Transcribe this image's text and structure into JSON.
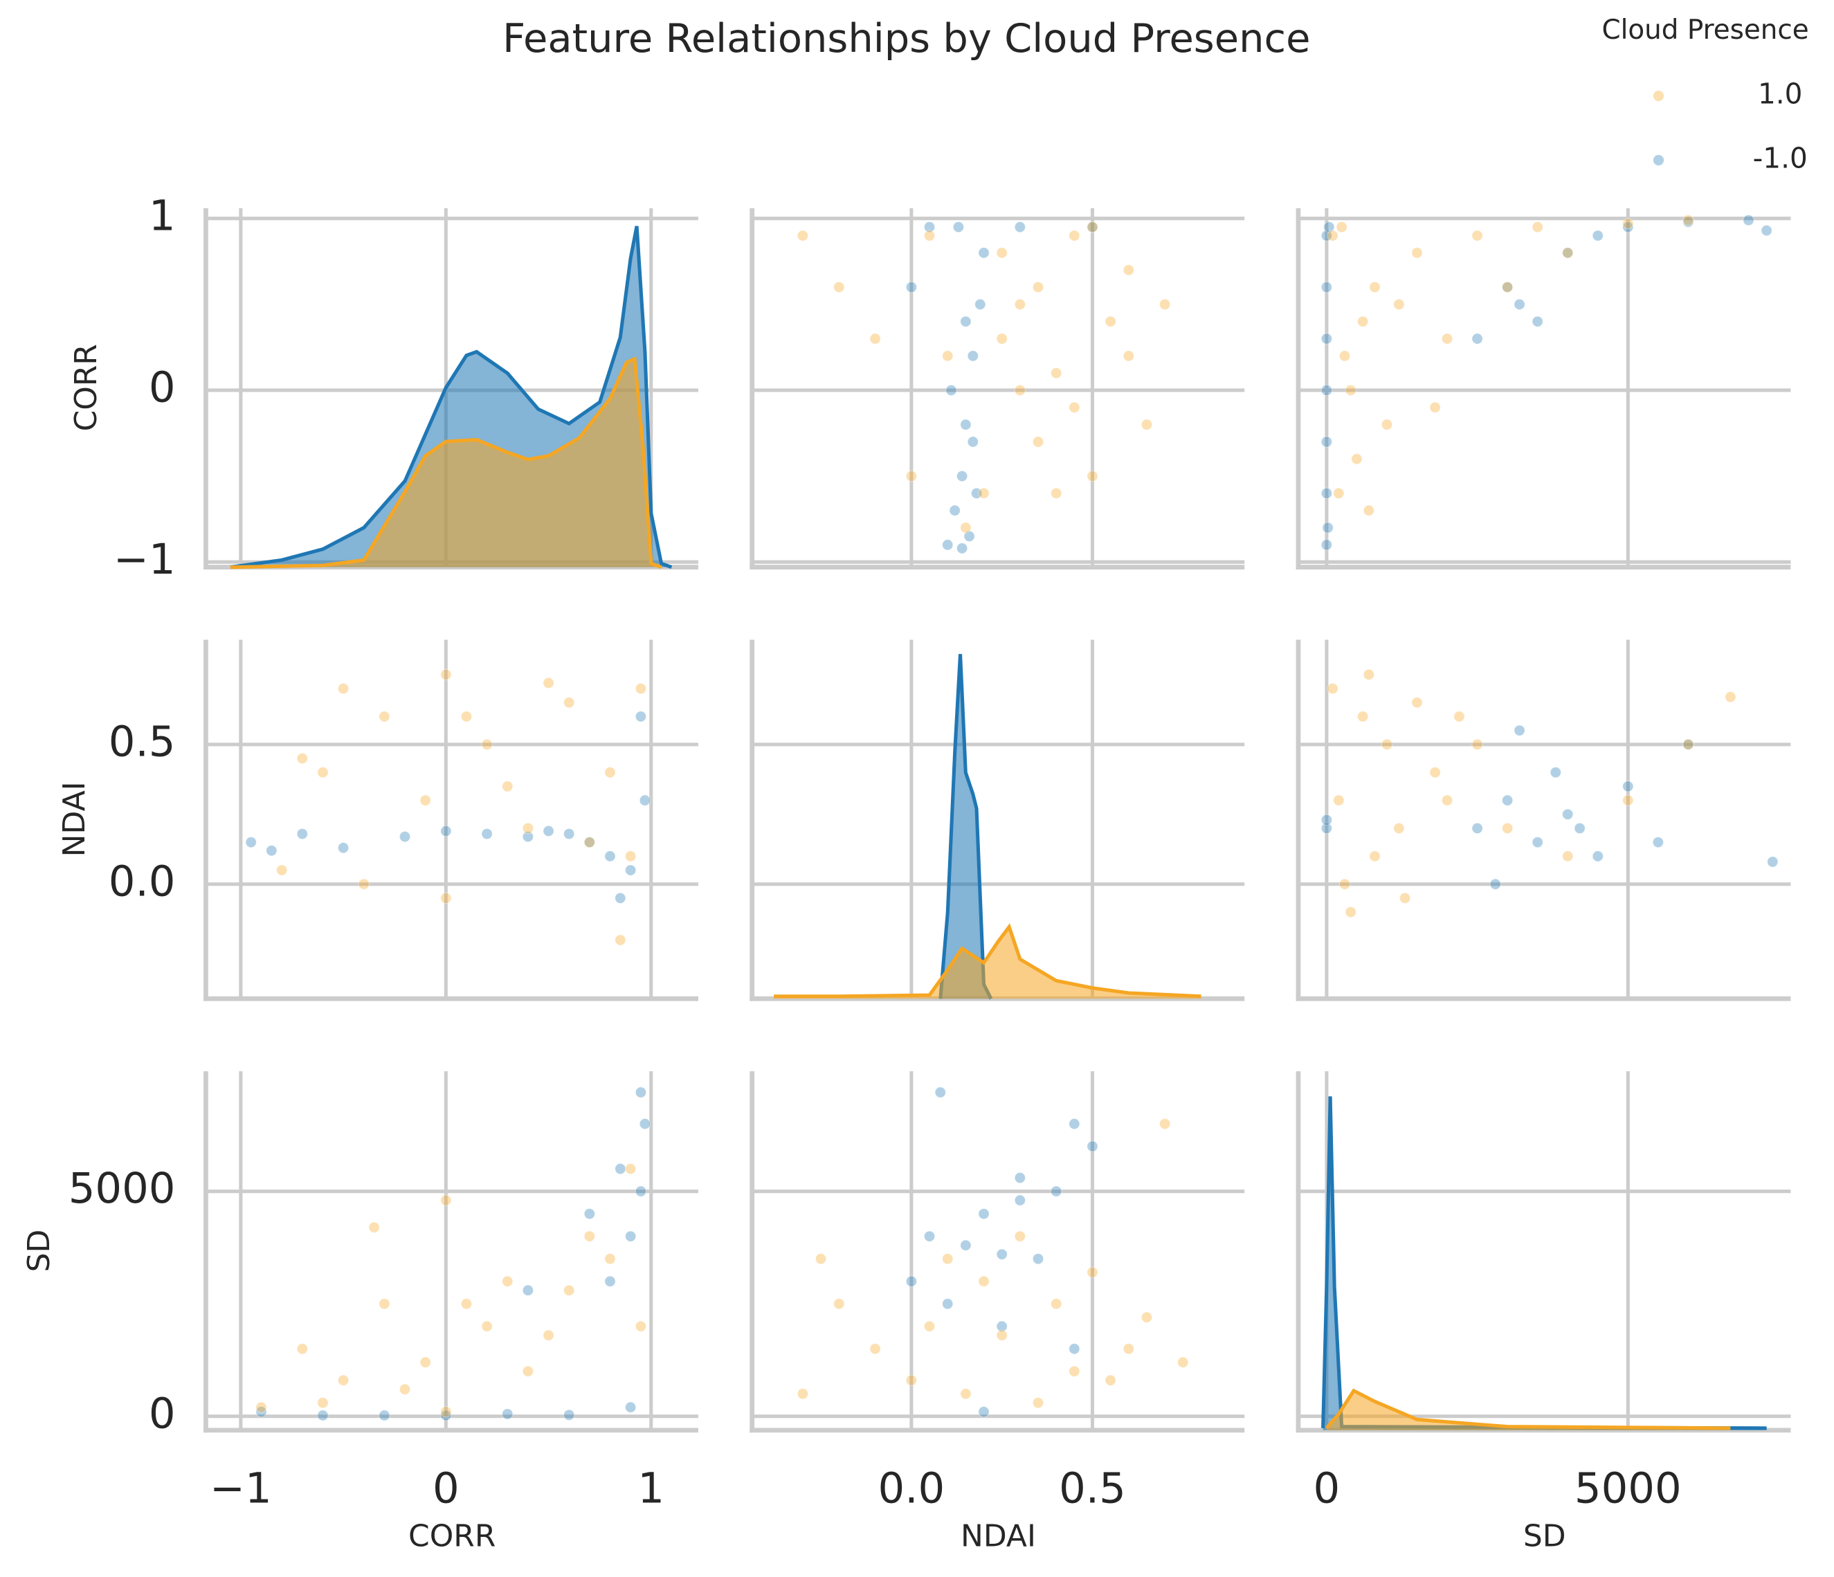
{
  "title": "Feature Relationships by Cloud Presence",
  "legend_title": "Cloud Presence",
  "columns": [
    {
      "label": "CORR",
      "xlim": [
        -1.17,
        1.23
      ],
      "xticks": [
        {
          "value": -1,
          "label": "−1"
        },
        0,
        1
      ]
    },
    {
      "label": "NDAI",
      "xlim": [
        -0.44,
        0.92
      ],
      "xticks": [
        {
          "value": 0,
          "label": "0.0"
        },
        {
          "value": 0.5,
          "label": "0.5"
        }
      ]
    },
    {
      "label": "SD",
      "xlim": [
        -470,
        7700
      ],
      "xticks": [
        0,
        5000
      ]
    }
  ],
  "rows": [
    {
      "label": "CORR",
      "ylim": [
        -1.03,
        1.06
      ],
      "yticks": [
        {
          "value": -1,
          "label": "−1"
        },
        0,
        1
      ]
    },
    {
      "label": "NDAI",
      "ylim": [
        -0.41,
        0.875
      ],
      "yticks": [
        {
          "value": 0,
          "label": "0.0"
        },
        {
          "value": 0.5,
          "label": "0.5"
        }
      ]
    },
    {
      "label": "SD",
      "ylim": [
        -310,
        7670
      ],
      "yticks": [
        0,
        5000
      ]
    }
  ],
  "chart_data": [
    {
      "type": "kde",
      "ylim": [
        0,
        1
      ],
      "series": [
        {
          "name": "-1.0",
          "color": "#1f77b4",
          "x": [
            -1.05,
            -0.8,
            -0.6,
            -0.4,
            -0.2,
            -0.1,
            0.0,
            0.1,
            0.15,
            0.3,
            0.45,
            0.6,
            0.75,
            0.85,
            0.9,
            0.93,
            0.97,
            1.0,
            1.05,
            1.1
          ],
          "values": [
            0,
            0.02,
            0.05,
            0.11,
            0.24,
            0.37,
            0.5,
            0.59,
            0.6,
            0.54,
            0.44,
            0.4,
            0.46,
            0.64,
            0.86,
            0.95,
            0.6,
            0.15,
            0.01,
            0
          ]
        },
        {
          "name": "1.0",
          "color": "#f5a623",
          "x": [
            -1.05,
            -0.6,
            -0.4,
            -0.2,
            -0.1,
            0.0,
            0.15,
            0.3,
            0.4,
            0.5,
            0.65,
            0.8,
            0.88,
            0.92,
            0.96,
            1.0,
            1.05
          ],
          "values": [
            0,
            0.005,
            0.02,
            0.21,
            0.31,
            0.35,
            0.355,
            0.32,
            0.3,
            0.31,
            0.36,
            0.47,
            0.57,
            0.58,
            0.34,
            0.01,
            0
          ]
        }
      ]
    },
    {
      "type": "scatter",
      "series": [
        {
          "name": "-1.0",
          "color": "#1f77b4",
          "x": [
            0.1,
            0.12,
            0.14,
            0.15,
            0.17,
            0.19,
            0.2,
            0.13,
            0.16,
            0.18,
            0.11,
            0.15,
            0.05,
            0.0,
            0.3,
            0.5,
            0.14,
            0.17
          ],
          "values": [
            -0.9,
            -0.7,
            -0.5,
            -0.2,
            0.2,
            0.5,
            0.8,
            0.95,
            -0.85,
            -0.6,
            0.0,
            0.4,
            0.95,
            0.6,
            0.95,
            0.95,
            -0.92,
            -0.3
          ]
        },
        {
          "name": "1.0",
          "color": "#f5a623",
          "x": [
            -0.3,
            -0.2,
            -0.1,
            0.0,
            0.05,
            0.1,
            0.2,
            0.25,
            0.3,
            0.35,
            0.4,
            0.45,
            0.5,
            0.55,
            0.6,
            0.65,
            0.3,
            0.4,
            0.5,
            0.25,
            0.35,
            0.45,
            0.6,
            0.7,
            0.15
          ],
          "values": [
            0.9,
            0.6,
            0.3,
            -0.5,
            0.9,
            0.2,
            -0.6,
            0.8,
            0.5,
            -0.3,
            0.1,
            0.9,
            -0.5,
            0.4,
            0.7,
            -0.2,
            0.0,
            -0.6,
            0.95,
            0.3,
            0.6,
            -0.1,
            0.2,
            0.5,
            -0.8
          ]
        }
      ]
    },
    {
      "type": "scatter",
      "series": [
        {
          "name": "-1.0",
          "color": "#1f77b4",
          "x": [
            0,
            0,
            0,
            0,
            0,
            0,
            0,
            20,
            40,
            3000,
            3500,
            4000,
            4500,
            5000,
            6000,
            7000,
            2500,
            3200,
            7300
          ],
          "values": [
            -0.9,
            -0.6,
            -0.3,
            0.0,
            0.3,
            0.6,
            0.9,
            -0.8,
            0.95,
            0.6,
            0.4,
            0.8,
            0.9,
            0.95,
            0.98,
            0.99,
            0.3,
            0.5,
            0.93
          ]
        },
        {
          "name": "1.0",
          "color": "#f5a623",
          "x": [
            100,
            200,
            300,
            500,
            800,
            1000,
            1500,
            2000,
            2500,
            3000,
            3500,
            4000,
            5000,
            6000,
            400,
            700,
            1200,
            1800,
            250,
            600
          ],
          "values": [
            0.9,
            -0.6,
            0.2,
            -0.4,
            0.6,
            -0.2,
            0.8,
            0.3,
            0.9,
            0.6,
            0.95,
            0.8,
            0.97,
            0.99,
            0.0,
            -0.7,
            0.5,
            -0.1,
            0.95,
            0.4
          ]
        }
      ]
    },
    {
      "type": "scatter",
      "series": [
        {
          "name": "-1.0",
          "color": "#1f77b4",
          "x": [
            -0.95,
            -0.85,
            -0.7,
            -0.5,
            -0.2,
            0.0,
            0.2,
            0.4,
            0.6,
            0.8,
            0.9,
            0.95,
            0.97,
            0.7,
            0.85,
            0.5
          ],
          "values": [
            0.15,
            0.12,
            0.18,
            0.13,
            0.17,
            0.19,
            0.18,
            0.17,
            0.18,
            0.1,
            0.05,
            0.6,
            0.3,
            0.15,
            -0.05,
            0.19
          ]
        },
        {
          "name": "1.0",
          "color": "#f5a623",
          "x": [
            -0.8,
            -0.6,
            -0.5,
            -0.3,
            -0.1,
            0.0,
            0.2,
            0.4,
            0.6,
            0.8,
            0.9,
            0.95,
            -0.4,
            0.1,
            0.3,
            0.5,
            0.7,
            0.85,
            -0.7,
            0.0
          ],
          "values": [
            0.05,
            0.4,
            0.7,
            0.6,
            0.3,
            0.75,
            0.5,
            0.2,
            0.65,
            0.4,
            0.1,
            0.7,
            0.0,
            0.6,
            0.35,
            0.72,
            0.15,
            -0.2,
            0.45,
            -0.05
          ]
        }
      ]
    },
    {
      "type": "kde",
      "ylim": [
        0,
        1
      ],
      "series": [
        {
          "name": "-1.0",
          "color": "#1f77b4",
          "x": [
            0.08,
            0.1,
            0.12,
            0.135,
            0.15,
            0.17,
            0.18,
            0.2,
            0.22
          ],
          "values": [
            0,
            0.24,
            0.69,
            0.96,
            0.63,
            0.57,
            0.53,
            0.04,
            0
          ]
        },
        {
          "name": "1.0",
          "color": "#f5a623",
          "x": [
            -0.38,
            -0.2,
            0.05,
            0.1,
            0.14,
            0.2,
            0.24,
            0.27,
            0.3,
            0.4,
            0.5,
            0.6,
            0.8
          ],
          "values": [
            0.007,
            0.007,
            0.01,
            0.08,
            0.14,
            0.1,
            0.16,
            0.2,
            0.11,
            0.05,
            0.03,
            0.016,
            0.007
          ]
        }
      ]
    },
    {
      "type": "scatter",
      "series": [
        {
          "name": "-1.0",
          "color": "#1f77b4",
          "x": [
            0,
            0,
            2500,
            3000,
            3500,
            4000,
            4500,
            5000,
            2800,
            3800,
            4200,
            6000,
            7400,
            3200,
            5500
          ],
          "values": [
            0.2,
            0.23,
            0.2,
            0.3,
            0.15,
            0.25,
            0.1,
            0.35,
            0.0,
            0.4,
            0.2,
            0.5,
            0.08,
            0.55,
            0.15
          ]
        },
        {
          "name": "1.0",
          "color": "#f5a623",
          "x": [
            100,
            200,
            400,
            600,
            800,
            1000,
            1200,
            1500,
            1800,
            2000,
            2500,
            3000,
            4000,
            5000,
            6000,
            6700,
            300,
            700,
            1300,
            2200
          ],
          "values": [
            0.7,
            0.3,
            -0.1,
            0.6,
            0.1,
            0.5,
            0.2,
            0.65,
            0.4,
            0.3,
            0.5,
            0.2,
            0.1,
            0.3,
            0.5,
            0.67,
            0.0,
            0.75,
            -0.05,
            0.6
          ]
        }
      ]
    },
    {
      "type": "scatter",
      "series": [
        {
          "name": "-1.0",
          "color": "#1f77b4",
          "x": [
            -0.9,
            -0.6,
            -0.3,
            0.0,
            0.3,
            0.6,
            0.9,
            0.95,
            0.97,
            0.9,
            0.8,
            0.7,
            0.95,
            0.85,
            0.4
          ],
          "values": [
            100,
            20,
            20,
            20,
            50,
            30,
            200,
            5000,
            6500,
            4000,
            3000,
            4500,
            7200,
            5500,
            2800
          ]
        },
        {
          "name": "1.0",
          "color": "#f5a623",
          "x": [
            -0.9,
            -0.7,
            -0.5,
            -0.3,
            -0.1,
            0.0,
            0.2,
            0.4,
            0.6,
            0.8,
            0.9,
            0.95,
            -0.6,
            -0.2,
            0.1,
            0.3,
            0.5,
            0.7,
            0.0,
            -0.35
          ],
          "values": [
            200,
            1500,
            800,
            2500,
            1200,
            4800,
            2000,
            1000,
            2800,
            3500,
            5500,
            2000,
            300,
            600,
            2500,
            3000,
            1800,
            4000,
            100,
            4200
          ]
        }
      ]
    },
    {
      "type": "scatter",
      "series": [
        {
          "name": "-1.0",
          "color": "#1f77b4",
          "x": [
            0.0,
            0.05,
            0.1,
            0.15,
            0.2,
            0.25,
            0.3,
            0.35,
            0.4,
            0.45,
            0.5,
            0.08,
            0.2,
            0.3,
            0.45,
            0.25
          ],
          "values": [
            3000,
            4000,
            2500,
            3800,
            4500,
            2000,
            4800,
            3500,
            5000,
            6500,
            6000,
            7200,
            100,
            5300,
            1500,
            3600
          ]
        },
        {
          "name": "1.0",
          "color": "#f5a623",
          "x": [
            -0.3,
            -0.2,
            -0.1,
            0.0,
            0.05,
            0.1,
            0.2,
            0.3,
            0.4,
            0.5,
            0.6,
            0.7,
            0.15,
            0.25,
            0.35,
            0.45,
            0.55,
            0.65,
            0.75,
            -0.25
          ],
          "values": [
            500,
            2500,
            1500,
            800,
            2000,
            3500,
            3000,
            4000,
            2500,
            3200,
            1500,
            6500,
            500,
            1800,
            300,
            1000,
            800,
            2200,
            1200,
            3500
          ]
        }
      ]
    },
    {
      "type": "kde",
      "ylim": [
        0,
        1
      ],
      "series": [
        {
          "name": "-1.0",
          "color": "#1f77b4",
          "x": [
            -60,
            0,
            60,
            130,
            250,
            7300
          ],
          "values": [
            0.006,
            0.4,
            0.93,
            0.4,
            0.01,
            0.006
          ]
        },
        {
          "name": "1.0",
          "color": "#f5a623",
          "x": [
            0,
            200,
            450,
            800,
            1500,
            3000,
            6700
          ],
          "values": [
            0.006,
            0.045,
            0.11,
            0.08,
            0.03,
            0.01,
            0.006
          ]
        }
      ]
    }
  ]
}
